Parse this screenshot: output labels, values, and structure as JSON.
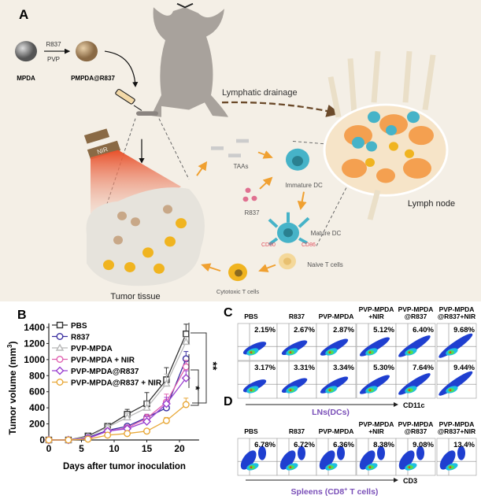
{
  "panel_a": {
    "label": "A",
    "mpda": "MPDA",
    "arrow_top": "R837",
    "arrow_bottom": "PVP",
    "pmpda": "PMPDA@R837",
    "nir": "NIR",
    "lymphatic": "Lymphatic drainage",
    "lymph_node": "Lymph node",
    "tumor": "Tumor tissue",
    "taas": "TAAs",
    "immature_dc": "Immature DC",
    "r837": "R837",
    "mature_dc": "Mature DC",
    "cd80": "CD80",
    "cd86": "CD86",
    "naive_t": "Naive T cells",
    "cytotoxic_t": "Cytotoxic T cells",
    "colors": {
      "background": "#f4efe6",
      "arrow": "#f0a030",
      "drainage": "#6b4a2a",
      "dc": "#46b3c8",
      "node": "#f4a050",
      "mouse": "#a8a29c"
    }
  },
  "chart_data": {
    "type": "line",
    "panel_label": "B",
    "xlabel": "Days after tumor inoculation",
    "ylabel": "Tumor volume (mm",
    "ylabel_sup": "3",
    "ylabel_close": ")",
    "xlim": [
      0,
      23
    ],
    "ylim": [
      0,
      1450
    ],
    "xticks": [
      "0",
      "5",
      "10",
      "15",
      "20"
    ],
    "yticks": [
      "0",
      "200",
      "400",
      "600",
      "800",
      "1000",
      "1200",
      "1400"
    ],
    "x": [
      0,
      3,
      6,
      9,
      12,
      15,
      18,
      21
    ],
    "legend_position": "top-left",
    "series": [
      {
        "name": "PBS",
        "color": "#333333",
        "marker": "square",
        "values": [
          0,
          0,
          50,
          170,
          320,
          450,
          750,
          1320
        ],
        "errors": [
          0,
          0,
          20,
          30,
          60,
          140,
          150,
          120
        ]
      },
      {
        "name": "R837",
        "color": "#3a2fa0",
        "marker": "circle",
        "values": [
          0,
          0,
          30,
          120,
          170,
          280,
          400,
          1010
        ],
        "errors": [
          0,
          0,
          10,
          20,
          30,
          40,
          60,
          90
        ]
      },
      {
        "name": "PVP-MPDA",
        "color": "#b8b8b8",
        "marker": "triangle",
        "values": [
          0,
          0,
          40,
          160,
          280,
          400,
          700,
          1220
        ],
        "errors": [
          0,
          0,
          15,
          30,
          50,
          80,
          120,
          60
        ]
      },
      {
        "name": "PVP-MPDA + NIR",
        "color": "#e060b0",
        "marker": "circle",
        "values": [
          0,
          0,
          20,
          110,
          150,
          270,
          470,
          910
        ],
        "errors": [
          0,
          0,
          10,
          20,
          30,
          50,
          100,
          80
        ]
      },
      {
        "name": "PVP-MPDA@R837",
        "color": "#9a40d0",
        "marker": "diamond",
        "values": [
          0,
          0,
          20,
          110,
          140,
          230,
          450,
          770
        ],
        "errors": [
          0,
          0,
          10,
          20,
          30,
          60,
          80,
          90
        ]
      },
      {
        "name": "PVP-MPDA@R837 + NIR",
        "color": "#e8a838",
        "marker": "circle",
        "values": [
          0,
          0,
          10,
          60,
          80,
          110,
          240,
          440
        ],
        "errors": [
          0,
          0,
          5,
          10,
          15,
          20,
          40,
          80
        ]
      }
    ],
    "significance": [
      "**",
      "*"
    ]
  },
  "panel_c": {
    "label": "C",
    "groups": [
      "PBS",
      "R837",
      "PVP-MPDA",
      "PVP-MPDA\n+NIR",
      "PVP-MPDA\n@R837",
      "PVP-MPDA\n@R837+NIR"
    ],
    "rows": [
      {
        "marker": "CD80",
        "values": [
          "2.15%",
          "2.67%",
          "2.87%",
          "5.12%",
          "6.40%",
          "9.68%"
        ]
      },
      {
        "marker": "CD86",
        "values": [
          "3.17%",
          "3.31%",
          "3.34%",
          "5.30%",
          "7.64%",
          "9.44%"
        ]
      }
    ],
    "x_marker": "CD11c",
    "caption": "LNs(DCs)"
  },
  "panel_d": {
    "label": "D",
    "groups": [
      "PBS",
      "R837",
      "PVP-MPDA",
      "PVP-MPDA\n+NIR",
      "PVP-MPDA\n@R837",
      "PVP-MPDA\n@R837+NIR"
    ],
    "rows": [
      {
        "marker": "CD8a",
        "values": [
          "6.78%",
          "6.72%",
          "6.36%",
          "8.38%",
          "9.08%",
          "13.4%"
        ]
      }
    ],
    "x_marker": "CD3",
    "caption": "Spleens (CD8",
    "caption_sup": "+",
    "caption_end": " T cells)",
    "caption_color": "#7a4fb8"
  }
}
